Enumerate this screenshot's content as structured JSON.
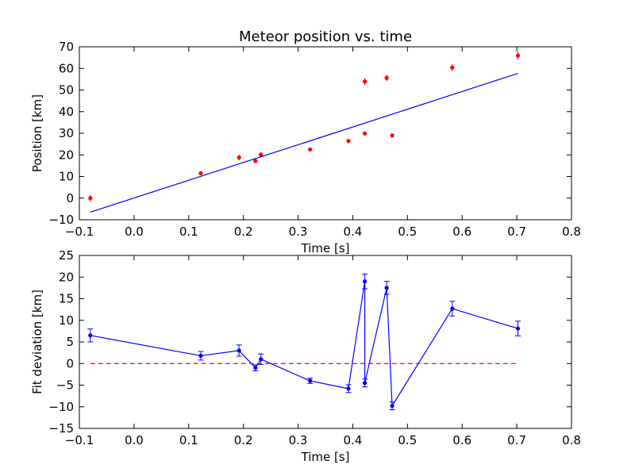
{
  "colors": {
    "background": "#ffffff",
    "fit_line": "#0000ff",
    "data_points": "#ff0000",
    "deviation_line": "#0000ff",
    "zero_line": "#ff0000",
    "axes": "#000000"
  },
  "chart_data": [
    {
      "type": "scatter",
      "title": "Meteor position vs. time",
      "xlabel": "Time [s]",
      "ylabel": "Position [km]",
      "xlim": [
        -0.1,
        0.8
      ],
      "ylim": [
        -10,
        70
      ],
      "xticks": [
        "−0.1",
        "0.0",
        "0.1",
        "0.2",
        "0.3",
        "0.4",
        "0.5",
        "0.6",
        "0.7",
        "0.8"
      ],
      "yticks": [
        "−10",
        "0",
        "10",
        "20",
        "30",
        "40",
        "50",
        "60",
        "70"
      ],
      "grid": false,
      "series": [
        {
          "kind": "errorbar-points",
          "color": "#ff0000",
          "x": [
            -0.08,
            0.122,
            0.192,
            0.222,
            0.232,
            0.322,
            0.392,
            0.422,
            0.422,
            0.462,
            0.472,
            0.582,
            0.702
          ],
          "y": [
            0.0,
            11.5,
            18.8,
            17.2,
            20.1,
            22.5,
            26.4,
            53.9,
            29.9,
            55.6,
            29.0,
            60.4,
            65.9
          ],
          "yerr": [
            1.5,
            1.0,
            1.3,
            0.7,
            1.2,
            0.6,
            0.9,
            1.7,
            0.9,
            1.5,
            0.6,
            1.7,
            1.7
          ]
        },
        {
          "kind": "line",
          "color": "#0000ff",
          "x": [
            -0.08,
            0.702
          ],
          "y": [
            -6.5,
            57.7
          ]
        }
      ]
    },
    {
      "type": "line",
      "title": "",
      "xlabel": "Time [s]",
      "ylabel": "Fit deviation [km]",
      "xlim": [
        -0.1,
        0.8
      ],
      "ylim": [
        -15,
        25
      ],
      "xticks": [
        "−0.1",
        "0.0",
        "0.1",
        "0.2",
        "0.3",
        "0.4",
        "0.5",
        "0.6",
        "0.7",
        "0.8"
      ],
      "yticks": [
        "−15",
        "−10",
        "−5",
        "0",
        "5",
        "10",
        "15",
        "20",
        "25"
      ],
      "grid": false,
      "series": [
        {
          "kind": "errorbar-line",
          "color": "#0000ff",
          "x": [
            -0.08,
            0.122,
            0.192,
            0.222,
            0.232,
            0.322,
            0.392,
            0.422,
            0.422,
            0.462,
            0.472,
            0.582,
            0.702
          ],
          "y": [
            6.5,
            1.8,
            3.0,
            -1.0,
            1.0,
            -4.0,
            -5.8,
            19.0,
            -4.5,
            17.5,
            -9.8,
            12.7,
            8.1
          ],
          "yerr": [
            1.5,
            1.0,
            1.3,
            0.7,
            1.2,
            0.6,
            0.9,
            1.7,
            0.9,
            1.5,
            0.9,
            1.7,
            1.7
          ]
        },
        {
          "kind": "dashed-line",
          "color": "#ff0000",
          "x": [
            -0.08,
            0.702
          ],
          "y": [
            0,
            0
          ]
        }
      ]
    }
  ]
}
